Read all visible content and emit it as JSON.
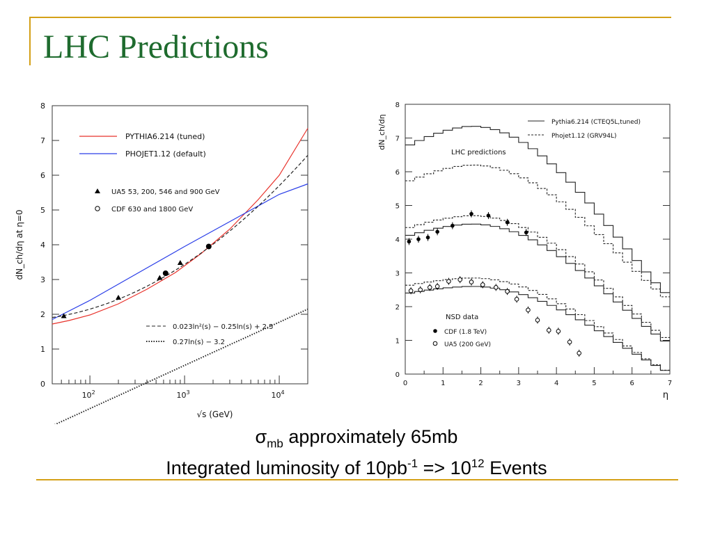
{
  "page": {
    "title": "LHC Predictions",
    "caption_line1": {
      "sigma": "σ",
      "sub": "mb",
      "text": " approximately 65mb"
    },
    "caption_line2": {
      "text1": "Integrated luminosity of 10pb",
      "sup1": "-1",
      "text2": " => 10",
      "sup2": "12",
      "text3": " Events"
    },
    "colors": {
      "title": "#1e6b2e",
      "rule": "#d4a017"
    }
  },
  "chart_data": [
    {
      "type": "line",
      "ylabel": "dN_ch/dη at η=0",
      "xlabel": "√s (GeV)",
      "xscale": "log",
      "xlim": [
        40,
        20000
      ],
      "ylim": [
        0,
        8
      ],
      "xticks": [
        {
          "v": 100,
          "base": "10",
          "exp": "2"
        },
        {
          "v": 1000,
          "base": "10",
          "exp": "3"
        },
        {
          "v": 10000,
          "base": "10",
          "exp": "4"
        }
      ],
      "yticks": [
        "0",
        "1",
        "2",
        "3",
        "4",
        "5",
        "6",
        "7",
        "8"
      ],
      "series": [
        {
          "name": "PYTHIA6.214 (tuned)",
          "style": "red",
          "x": [
            40,
            60,
            100,
            200,
            400,
            800,
            1500,
            3000,
            6000,
            10000,
            20000
          ],
          "y": [
            1.72,
            1.82,
            1.98,
            2.3,
            2.72,
            3.2,
            3.75,
            4.45,
            5.3,
            6.0,
            7.35
          ]
        },
        {
          "name": "PHOJET1.12 (default)",
          "style": "blue",
          "x": [
            40,
            100,
            1000,
            10000,
            20000
          ],
          "y": [
            1.85,
            2.4,
            3.95,
            5.45,
            5.75
          ]
        },
        {
          "name": "0.023ln²(s) − 0.25ln(s) + 2.5",
          "style": "dashed",
          "formula": "quad"
        },
        {
          "name": "0.27ln(s) − 3.2",
          "style": "dotted",
          "formula": "lin"
        }
      ],
      "points": [
        {
          "name": "UA5 53, 200, 546 and 900 GeV",
          "marker": "triangle",
          "x": [
            53,
            200,
            546,
            900
          ],
          "y": [
            1.95,
            2.48,
            3.05,
            3.48
          ]
        },
        {
          "name": "CDF 630 and 1800 GeV",
          "marker": "circle",
          "x": [
            630,
            1800
          ],
          "y": [
            3.18,
            3.95
          ]
        }
      ]
    },
    {
      "type": "line",
      "ylabel": "dN_ch/dη",
      "xlabel": "η",
      "xlim": [
        0,
        7
      ],
      "ylim": [
        0,
        8
      ],
      "xticks": [
        "0",
        "1",
        "2",
        "3",
        "4",
        "5",
        "6",
        "7"
      ],
      "yticks": [
        "0",
        "1",
        "2",
        "3",
        "4",
        "5",
        "6",
        "7",
        "8"
      ],
      "annotations": [
        "LHC predictions",
        "NSD data"
      ],
      "series": [
        {
          "name": "Pythia6.214 (CTEQ5L,tuned)",
          "style": "solid"
        },
        {
          "name": "Phojet1.12 (GRV94L)",
          "style": "dashed"
        }
      ],
      "histograms": [
        {
          "style": "solid",
          "peak": 7.35,
          "edge": 2.3
        },
        {
          "style": "dashed",
          "peak": 6.2,
          "edge": 2.2
        },
        {
          "style": "dashed",
          "peak": 4.7,
          "edge": 1.0
        },
        {
          "style": "solid",
          "peak": 4.45,
          "edge": 0.9
        },
        {
          "style": "dashed",
          "peak": 2.85,
          "edge": 0.05
        },
        {
          "style": "solid",
          "peak": 2.6,
          "edge": 0.05
        }
      ],
      "points": [
        {
          "name": "CDF (1.8 TeV)",
          "marker": "filled-circle",
          "x": [
            0.1,
            0.35,
            0.6,
            0.85,
            1.25,
            1.75,
            2.2,
            2.7,
            3.2
          ],
          "y": [
            3.93,
            4.0,
            4.05,
            4.22,
            4.4,
            4.75,
            4.7,
            4.5,
            4.2
          ]
        },
        {
          "name": "UA5 (200 GeV)",
          "marker": "open-circle",
          "x": [
            0.15,
            0.4,
            0.65,
            0.85,
            1.15,
            1.45,
            1.75,
            2.05,
            2.4,
            2.7,
            2.95,
            3.25,
            3.5,
            3.8,
            4.05,
            4.35,
            4.6
          ],
          "y": [
            2.47,
            2.5,
            2.57,
            2.6,
            2.75,
            2.8,
            2.73,
            2.65,
            2.57,
            2.45,
            2.22,
            1.9,
            1.6,
            1.3,
            1.27,
            0.95,
            0.62
          ]
        }
      ]
    }
  ]
}
